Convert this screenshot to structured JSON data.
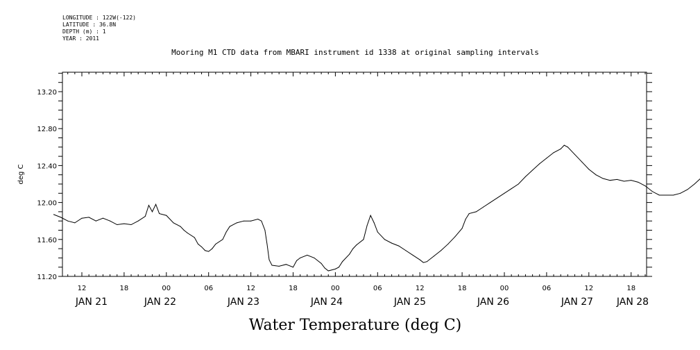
{
  "meta": {
    "longitude": "LONGITUDE : 122W(-122)",
    "latitude": "LATITUDE : 36.8N",
    "depth": "DEPTH (m) : 1",
    "year": "YEAR : 2011"
  },
  "chart_data": {
    "type": "line",
    "title": "Mooring M1 CTD data from MBARI instrument id 1338 at original sampling intervals",
    "xlabel": "Water Temperature (deg C)",
    "ylabel": "deg C",
    "xlim": [
      8,
      149
    ],
    "ylim": [
      11.2,
      13.4
    ],
    "x_unit": "hours since JAN 21 00:00 2011",
    "y_ticks": [
      {
        "value": 11.2,
        "label": "11.20"
      },
      {
        "value": 11.6,
        "label": "11.60"
      },
      {
        "value": 12.0,
        "label": "12.00"
      },
      {
        "value": 12.4,
        "label": "12.40"
      },
      {
        "value": 12.8,
        "label": "12.80"
      },
      {
        "value": 13.2,
        "label": "13.20"
      }
    ],
    "x_hour_ticks": [
      {
        "hour": 12,
        "label": "12"
      },
      {
        "hour": 18,
        "label": "18"
      },
      {
        "hour": 24,
        "label": "00"
      },
      {
        "hour": 30,
        "label": "06"
      },
      {
        "hour": 36,
        "label": "12"
      },
      {
        "hour": 42,
        "label": "18"
      },
      {
        "hour": 48,
        "label": "00"
      },
      {
        "hour": 54,
        "label": "06"
      },
      {
        "hour": 60,
        "label": "12"
      },
      {
        "hour": 66,
        "label": "18"
      },
      {
        "hour": 72,
        "label": "00"
      },
      {
        "hour": 78,
        "label": "06"
      },
      {
        "hour": 84,
        "label": "12"
      },
      {
        "hour": 90,
        "label": "18"
      },
      {
        "hour": 96,
        "label": "00"
      },
      {
        "hour": 102,
        "label": "06"
      },
      {
        "hour": 108,
        "label": "12"
      },
      {
        "hour": 114,
        "label": "18"
      },
      {
        "hour": 120,
        "label": "00"
      },
      {
        "hour": 126,
        "label": "06"
      },
      {
        "hour": 132,
        "label": "12"
      },
      {
        "hour": 138,
        "label": "18"
      },
      {
        "hour": 144,
        "label": "00"
      },
      {
        "hour": 150,
        "label": "06"
      }
    ],
    "x_day_labels": [
      {
        "hour": 12,
        "label": "JAN 21"
      },
      {
        "hour": 36,
        "label": "JAN 22"
      },
      {
        "hour": 60,
        "label": "JAN 23"
      },
      {
        "hour": 84,
        "label": "JAN 24"
      },
      {
        "hour": 108,
        "label": "JAN 25"
      },
      {
        "hour": 132,
        "label": "JAN 26"
      },
      {
        "hour": 156,
        "label": "JAN 27"
      },
      {
        "hour": 168,
        "label": "JAN 28"
      }
    ],
    "series": [
      {
        "color": "#000000",
        "points": [
          [
            8.0,
            11.87
          ],
          [
            9.0,
            11.84
          ],
          [
            10.0,
            11.8
          ],
          [
            11.0,
            11.78
          ],
          [
            12.0,
            11.83
          ],
          [
            13.0,
            11.84
          ],
          [
            14.0,
            11.8
          ],
          [
            15.0,
            11.83
          ],
          [
            16.0,
            11.8
          ],
          [
            17.0,
            11.76
          ],
          [
            18.0,
            11.77
          ],
          [
            19.0,
            11.76
          ],
          [
            20.0,
            11.8
          ],
          [
            21.0,
            11.85
          ],
          [
            21.5,
            11.97
          ],
          [
            22.0,
            11.9
          ],
          [
            22.5,
            11.98
          ],
          [
            23.0,
            11.88
          ],
          [
            24.0,
            11.86
          ],
          [
            25.0,
            11.78
          ],
          [
            26.0,
            11.74
          ],
          [
            26.5,
            11.7
          ],
          [
            27.0,
            11.67
          ],
          [
            28.0,
            11.62
          ],
          [
            28.5,
            11.55
          ],
          [
            29.0,
            11.52
          ],
          [
            29.5,
            11.48
          ],
          [
            30.0,
            11.47
          ],
          [
            30.5,
            11.5
          ],
          [
            31.0,
            11.55
          ],
          [
            32.0,
            11.6
          ],
          [
            32.5,
            11.68
          ],
          [
            33.0,
            11.74
          ],
          [
            34.0,
            11.78
          ],
          [
            35.0,
            11.8
          ],
          [
            36.0,
            11.8
          ],
          [
            37.0,
            11.82
          ],
          [
            37.5,
            11.8
          ],
          [
            38.0,
            11.7
          ],
          [
            38.3,
            11.55
          ],
          [
            38.6,
            11.38
          ],
          [
            39.0,
            11.32
          ],
          [
            40.0,
            11.31
          ],
          [
            41.0,
            11.33
          ],
          [
            42.0,
            11.3
          ],
          [
            42.5,
            11.37
          ],
          [
            43.0,
            11.4
          ],
          [
            44.0,
            11.43
          ],
          [
            45.0,
            11.4
          ],
          [
            46.0,
            11.34
          ],
          [
            46.5,
            11.29
          ],
          [
            47.0,
            11.26
          ],
          [
            48.0,
            11.28
          ],
          [
            48.5,
            11.3
          ],
          [
            49.0,
            11.36
          ],
          [
            50.0,
            11.44
          ],
          [
            50.5,
            11.5
          ],
          [
            51.0,
            11.54
          ],
          [
            52.0,
            11.6
          ],
          [
            52.5,
            11.75
          ],
          [
            53.0,
            11.86
          ],
          [
            53.5,
            11.78
          ],
          [
            54.0,
            11.68
          ],
          [
            55.0,
            11.6
          ],
          [
            56.0,
            11.56
          ],
          [
            57.0,
            11.53
          ],
          [
            58.0,
            11.48
          ],
          [
            59.0,
            11.43
          ],
          [
            60.0,
            11.38
          ],
          [
            60.5,
            11.35
          ],
          [
            61.0,
            11.36
          ],
          [
            62.0,
            11.42
          ],
          [
            63.0,
            11.48
          ],
          [
            64.0,
            11.55
          ],
          [
            65.0,
            11.63
          ],
          [
            66.0,
            11.72
          ],
          [
            66.5,
            11.82
          ],
          [
            67.0,
            11.88
          ],
          [
            68.0,
            11.9
          ],
          [
            69.0,
            11.95
          ],
          [
            70.0,
            12.0
          ],
          [
            71.0,
            12.05
          ],
          [
            72.0,
            12.1
          ],
          [
            73.0,
            12.15
          ],
          [
            74.0,
            12.2
          ],
          [
            75.0,
            12.28
          ],
          [
            76.0,
            12.35
          ],
          [
            77.0,
            12.42
          ],
          [
            78.0,
            12.48
          ],
          [
            79.0,
            12.54
          ],
          [
            80.0,
            12.58
          ],
          [
            80.5,
            12.62
          ],
          [
            81.0,
            12.6
          ],
          [
            82.0,
            12.52
          ],
          [
            83.0,
            12.44
          ],
          [
            84.0,
            12.36
          ],
          [
            85.0,
            12.3
          ],
          [
            86.0,
            12.26
          ],
          [
            87.0,
            12.24
          ],
          [
            88.0,
            12.25
          ],
          [
            89.0,
            12.23
          ],
          [
            90.0,
            12.24
          ],
          [
            91.0,
            12.22
          ],
          [
            92.0,
            12.18
          ],
          [
            93.0,
            12.12
          ],
          [
            94.0,
            12.08
          ],
          [
            95.0,
            12.08
          ],
          [
            96.0,
            12.08
          ],
          [
            97.0,
            12.1
          ],
          [
            98.0,
            12.14
          ],
          [
            99.0,
            12.2
          ],
          [
            100.0,
            12.27
          ],
          [
            101.0,
            12.35
          ],
          [
            101.5,
            12.4
          ],
          [
            102.0,
            12.52
          ],
          [
            102.5,
            12.57
          ],
          [
            103.0,
            12.54
          ],
          [
            103.5,
            12.46
          ],
          [
            104.0,
            12.4
          ],
          [
            105.0,
            12.34
          ],
          [
            106.0,
            12.28
          ],
          [
            107.0,
            12.24
          ],
          [
            108.0,
            12.2
          ],
          [
            109.0,
            12.18
          ],
          [
            110.0,
            12.14
          ],
          [
            111.0,
            12.12
          ],
          [
            112.0,
            12.1
          ],
          [
            113.0,
            12.08
          ],
          [
            114.0,
            12.06
          ],
          [
            115.0,
            12.05
          ],
          [
            116.0,
            12.07
          ],
          [
            117.0,
            12.05
          ],
          [
            118.0,
            12.06
          ],
          [
            119.0,
            12.05
          ],
          [
            120.0,
            12.05
          ],
          [
            121.0,
            12.07
          ],
          [
            122.0,
            12.05
          ],
          [
            123.0,
            12.06
          ],
          [
            124.0,
            12.07
          ],
          [
            125.0,
            12.12
          ],
          [
            125.5,
            12.22
          ],
          [
            126.0,
            12.28
          ],
          [
            126.5,
            12.24
          ],
          [
            127.0,
            12.3
          ],
          [
            127.5,
            12.27
          ],
          [
            128.0,
            12.32
          ],
          [
            128.5,
            12.35
          ],
          [
            129.0,
            12.3
          ],
          [
            130.0,
            12.24
          ],
          [
            131.0,
            12.18
          ],
          [
            132.0,
            12.15
          ],
          [
            133.0,
            12.12
          ],
          [
            134.0,
            12.06
          ],
          [
            135.0,
            12.02
          ],
          [
            136.0,
            11.98
          ],
          [
            137.0,
            11.94
          ],
          [
            138.0,
            11.88
          ],
          [
            139.0,
            11.84
          ],
          [
            139.5,
            11.9
          ],
          [
            140.0,
            11.86
          ],
          [
            141.0,
            11.82
          ],
          [
            142.0,
            11.78
          ],
          [
            143.0,
            11.76
          ],
          [
            144.0,
            11.8
          ],
          [
            145.0,
            11.82
          ],
          [
            146.0,
            11.84
          ],
          [
            147.0,
            11.88
          ],
          [
            148.0,
            11.92
          ],
          [
            149.0,
            11.98
          ]
        ]
      }
    ]
  }
}
